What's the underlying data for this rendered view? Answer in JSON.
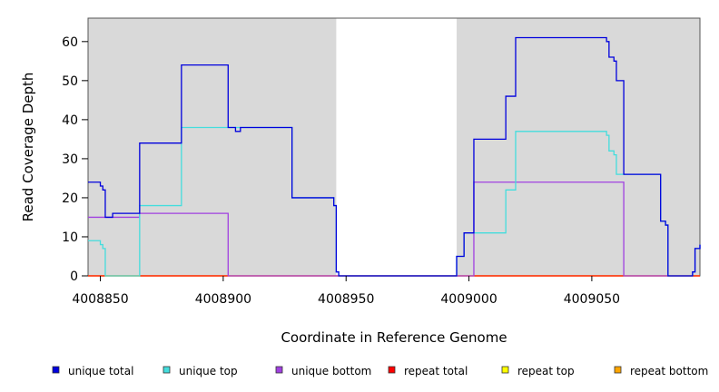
{
  "chart_data": {
    "type": "line",
    "xlabel": "Coordinate in Reference Genome",
    "ylabel": "Read Coverage Depth",
    "xlim": [
      4008845,
      4009094
    ],
    "ylim": [
      0,
      66
    ],
    "x_ticks": [
      4008850,
      4008900,
      4008950,
      4009000,
      4009050
    ],
    "y_ticks": [
      0,
      10,
      20,
      30,
      40,
      50,
      60
    ],
    "shaded_regions": [
      [
        4008845,
        4008946
      ],
      [
        4008995,
        4009094
      ]
    ],
    "background_color": "#d9d9d9",
    "legend_position": "bottom",
    "series": [
      {
        "name": "unique total",
        "color": "#0000dd",
        "points": [
          [
            4008845,
            24
          ],
          [
            4008850,
            24
          ],
          [
            4008850,
            23
          ],
          [
            4008851,
            23
          ],
          [
            4008851,
            22
          ],
          [
            4008852,
            22
          ],
          [
            4008852,
            15
          ],
          [
            4008855,
            15
          ],
          [
            4008855,
            16
          ],
          [
            4008866,
            16
          ],
          [
            4008866,
            34
          ],
          [
            4008883,
            34
          ],
          [
            4008883,
            54
          ],
          [
            4008902,
            54
          ],
          [
            4008902,
            38
          ],
          [
            4008905,
            38
          ],
          [
            4008905,
            37
          ],
          [
            4008907,
            37
          ],
          [
            4008907,
            38
          ],
          [
            4008928,
            38
          ],
          [
            4008928,
            20
          ],
          [
            4008945,
            20
          ],
          [
            4008945,
            18
          ],
          [
            4008946,
            18
          ],
          [
            4008946,
            1
          ],
          [
            4008947,
            1
          ],
          [
            4008947,
            0
          ],
          [
            4008995,
            0
          ],
          [
            4008995,
            5
          ],
          [
            4008998,
            5
          ],
          [
            4008998,
            11
          ],
          [
            4009002,
            11
          ],
          [
            4009002,
            35
          ],
          [
            4009015,
            35
          ],
          [
            4009015,
            46
          ],
          [
            4009019,
            46
          ],
          [
            4009019,
            61
          ],
          [
            4009056,
            61
          ],
          [
            4009056,
            60
          ],
          [
            4009057,
            60
          ],
          [
            4009057,
            56
          ],
          [
            4009059,
            56
          ],
          [
            4009059,
            55
          ],
          [
            4009060,
            55
          ],
          [
            4009060,
            50
          ],
          [
            4009063,
            50
          ],
          [
            4009063,
            26
          ],
          [
            4009078,
            26
          ],
          [
            4009078,
            14
          ],
          [
            4009080,
            14
          ],
          [
            4009080,
            13
          ],
          [
            4009081,
            13
          ],
          [
            4009081,
            0
          ],
          [
            4009091,
            0
          ],
          [
            4009091,
            1
          ],
          [
            4009092,
            1
          ],
          [
            4009092,
            7
          ],
          [
            4009094,
            7
          ],
          [
            4009094,
            8
          ]
        ]
      },
      {
        "name": "unique top",
        "color": "#44dddd",
        "points": [
          [
            4008845,
            9
          ],
          [
            4008850,
            9
          ],
          [
            4008850,
            8
          ],
          [
            4008851,
            8
          ],
          [
            4008851,
            7
          ],
          [
            4008852,
            7
          ],
          [
            4008852,
            0
          ],
          [
            4008866,
            0
          ],
          [
            4008866,
            18
          ],
          [
            4008883,
            18
          ],
          [
            4008883,
            38
          ],
          [
            4008902,
            38
          ],
          [
            4008928,
            38
          ],
          [
            4008928,
            20
          ],
          [
            4008945,
            20
          ],
          [
            4008945,
            18
          ],
          [
            4008946,
            18
          ],
          [
            4008946,
            1
          ],
          [
            4008947,
            1
          ],
          [
            4008947,
            0
          ],
          [
            4008995,
            0
          ],
          [
            4008995,
            5
          ],
          [
            4008998,
            5
          ],
          [
            4008998,
            11
          ],
          [
            4009015,
            11
          ],
          [
            4009015,
            22
          ],
          [
            4009019,
            22
          ],
          [
            4009019,
            37
          ],
          [
            4009056,
            37
          ],
          [
            4009056,
            36
          ],
          [
            4009057,
            36
          ],
          [
            4009057,
            32
          ],
          [
            4009059,
            32
          ],
          [
            4009059,
            31
          ],
          [
            4009060,
            31
          ],
          [
            4009060,
            26
          ],
          [
            4009078,
            26
          ],
          [
            4009078,
            14
          ],
          [
            4009080,
            14
          ],
          [
            4009080,
            13
          ],
          [
            4009081,
            13
          ],
          [
            4009081,
            0
          ],
          [
            4009091,
            0
          ],
          [
            4009091,
            1
          ],
          [
            4009092,
            1
          ],
          [
            4009092,
            7
          ],
          [
            4009094,
            7
          ],
          [
            4009094,
            8
          ]
        ]
      },
      {
        "name": "unique bottom",
        "color": "#a040e0",
        "points": [
          [
            4008845,
            15
          ],
          [
            4008866,
            15
          ],
          [
            4008866,
            16
          ],
          [
            4008902,
            16
          ],
          [
            4008902,
            0
          ],
          [
            4009002,
            0
          ],
          [
            4009002,
            24
          ],
          [
            4009063,
            24
          ],
          [
            4009063,
            0
          ],
          [
            4009091,
            0
          ],
          [
            4009091,
            1
          ],
          [
            4009092,
            1
          ],
          [
            4009092,
            7
          ],
          [
            4009094,
            7
          ],
          [
            4009094,
            8
          ]
        ]
      },
      {
        "name": "repeat total",
        "color": "#ff0000",
        "points": [
          [
            4008845,
            0
          ],
          [
            4009094,
            0
          ]
        ]
      },
      {
        "name": "repeat top",
        "color": "#ffff00",
        "points": [
          [
            4008845,
            0
          ],
          [
            4009094,
            0
          ]
        ]
      },
      {
        "name": "repeat bottom",
        "color": "#ffa500",
        "points": [
          [
            4008845,
            0
          ],
          [
            4009094,
            0
          ]
        ]
      }
    ]
  }
}
